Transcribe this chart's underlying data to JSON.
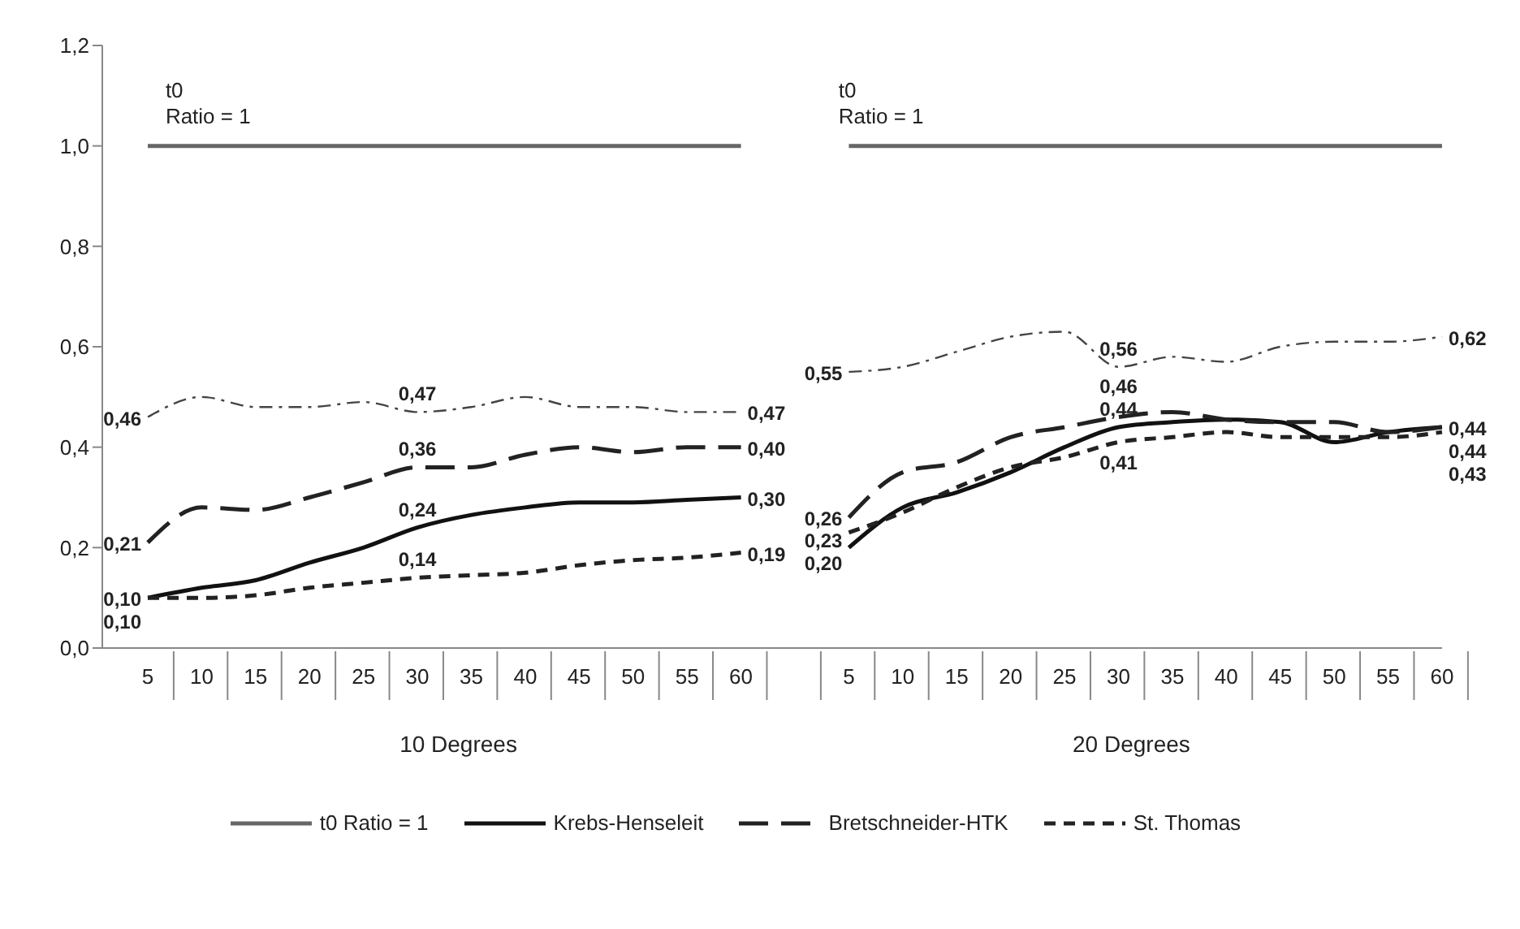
{
  "chart_data": {
    "type": "line",
    "categories": [
      "5",
      "10",
      "15",
      "20",
      "25",
      "30",
      "35",
      "40",
      "45",
      "50",
      "55",
      "60",
      null,
      "5",
      "10",
      "15",
      "20",
      "25",
      "30",
      "35",
      "40",
      "45",
      "50",
      "55",
      "60"
    ],
    "series": [
      {
        "name": "t0 Ratio = 1",
        "color": "#666666",
        "line_style": "solid",
        "values": [
          1,
          1,
          1,
          1,
          1,
          1,
          1,
          1,
          1,
          1,
          1,
          1,
          null,
          1,
          1,
          1,
          1,
          1,
          1,
          1,
          1,
          1,
          1,
          1,
          1
        ]
      },
      {
        "name": "Krebs-Henseleit",
        "color": "#111111",
        "line_style": "solid",
        "values": [
          0.1,
          0.12,
          0.135,
          0.17,
          0.2,
          0.24,
          0.265,
          0.28,
          0.29,
          0.29,
          0.295,
          0.3,
          null,
          0.2,
          0.28,
          0.31,
          0.35,
          0.4,
          0.44,
          0.45,
          0.455,
          0.45,
          0.41,
          0.43,
          0.44
        ],
        "value_labels": [
          "0,10",
          null,
          null,
          null,
          null,
          "0,24",
          null,
          null,
          null,
          null,
          null,
          "0,30",
          null,
          "0,20",
          null,
          null,
          null,
          null,
          "0,44",
          null,
          null,
          null,
          null,
          null,
          "0,44"
        ]
      },
      {
        "name": "Bretschneider-HTK",
        "color": "#222222",
        "line_style": "dashed",
        "values": [
          0.21,
          0.28,
          0.275,
          0.3,
          0.33,
          0.36,
          0.36,
          0.385,
          0.4,
          0.39,
          0.4,
          0.4,
          null,
          0.26,
          0.35,
          0.37,
          0.42,
          0.44,
          0.46,
          0.47,
          0.455,
          0.45,
          0.45,
          0.43,
          0.44
        ],
        "value_labels": [
          "0,21",
          null,
          null,
          null,
          null,
          "0,36",
          null,
          null,
          null,
          null,
          null,
          "0,40",
          null,
          "0,26",
          null,
          null,
          null,
          null,
          "0,46",
          null,
          null,
          null,
          null,
          null,
          "0,44"
        ]
      },
      {
        "name": "St. Thomas",
        "color": "#222222",
        "line_style": "dotted",
        "values": [
          0.1,
          0.1,
          0.105,
          0.12,
          0.13,
          0.14,
          0.145,
          0.15,
          0.165,
          0.175,
          0.18,
          0.19,
          null,
          0.23,
          0.27,
          0.32,
          0.36,
          0.38,
          0.41,
          0.42,
          0.43,
          0.42,
          0.42,
          0.42,
          0.43
        ],
        "value_labels": [
          "0,10",
          null,
          null,
          null,
          null,
          "0,14",
          null,
          null,
          null,
          null,
          null,
          "0,19",
          null,
          "0,23",
          null,
          null,
          null,
          null,
          "0,41",
          null,
          null,
          null,
          null,
          null,
          "0,43"
        ]
      },
      {
        "color": "#444444",
        "line_style": "dashdot",
        "values": [
          0.46,
          0.5,
          0.48,
          0.48,
          0.49,
          0.47,
          0.48,
          0.5,
          0.48,
          0.48,
          0.47,
          0.47,
          null,
          0.55,
          0.56,
          0.59,
          0.62,
          0.63,
          0.56,
          0.58,
          0.57,
          0.6,
          0.61,
          0.61,
          0.62
        ],
        "value_labels": [
          "0,46",
          null,
          null,
          null,
          null,
          "0,47",
          null,
          null,
          null,
          null,
          null,
          "0,47",
          null,
          "0,55",
          null,
          null,
          null,
          null,
          "0,56",
          null,
          null,
          null,
          null,
          null,
          "0,62"
        ]
      }
    ],
    "ylim": [
      0,
      1.2
    ],
    "yticks": [
      {
        "value": 0,
        "label": "0,0"
      },
      {
        "value": 0.2,
        "label": "0,2"
      },
      {
        "value": 0.4,
        "label": "0,4"
      },
      {
        "value": 0.6,
        "label": "0,6"
      },
      {
        "value": 0.8,
        "label": "0,8"
      },
      {
        "value": 1,
        "label": "1,0"
      },
      {
        "value": 1.2,
        "label": "1,2"
      }
    ],
    "grid": false,
    "legend": "bottom",
    "marker": "none",
    "annotations": [
      "t0\nRatio = 1",
      "t0\nRatio = 1",
      "10 Degrees",
      "20 Degrees"
    ]
  }
}
